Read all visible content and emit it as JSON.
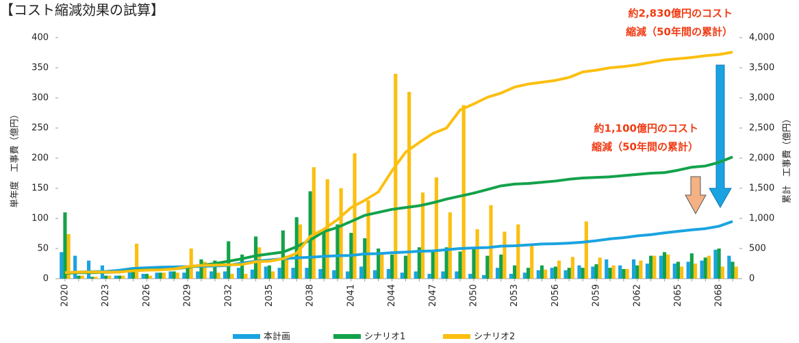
{
  "chart_data": {
    "type": "bar-line",
    "title": "【コスト縮減効果の試算】",
    "y_label": "単年度　工事費（億円）",
    "y2_label": "累計　工事費（億円）",
    "categories": [
      "2020",
      null,
      null,
      "2023",
      null,
      null,
      "2026",
      null,
      null,
      "2029",
      null,
      null,
      "2032",
      null,
      null,
      "2035",
      null,
      null,
      "2038",
      null,
      null,
      "2041",
      null,
      null,
      "2044",
      null,
      null,
      "2047",
      null,
      null,
      "2050",
      null,
      null,
      "2053",
      null,
      null,
      "2056",
      null,
      null,
      "2059",
      null,
      null,
      "2062",
      null,
      null,
      "2065",
      null,
      null,
      "2068",
      null
    ],
    "ylim": [
      0,
      400
    ],
    "yticks": [
      0,
      50,
      100,
      150,
      200,
      250,
      300,
      350,
      400
    ],
    "y2lim": [
      0,
      4000
    ],
    "y2ticks": [
      0,
      500,
      {
        "value": 1000,
        "label": "1,000"
      },
      {
        "value": 1500,
        "label": "1,500"
      },
      {
        "value": 2000,
        "label": "2,000"
      },
      {
        "value": 2500,
        "label": "2,500"
      },
      {
        "value": 3000,
        "label": "3,000"
      },
      {
        "value": 3500,
        "label": "3,500"
      },
      {
        "value": 4000,
        "label": "4,000"
      }
    ],
    "series": [
      {
        "name": "本計画",
        "color": "#1aa3e0",
        "values": [
          44,
          38,
          30,
          22,
          5,
          12,
          8,
          10,
          12,
          10,
          12,
          12,
          12,
          18,
          15,
          20,
          18,
          18,
          18,
          16,
          14,
          12,
          20,
          14,
          16,
          10,
          12,
          8,
          12,
          12,
          8,
          6,
          18,
          8,
          10,
          14,
          18,
          14,
          22,
          20,
          32,
          22,
          32,
          25,
          38,
          25,
          28,
          30,
          48,
          38
        ],
        "cumulative": [
          100,
          110,
          115,
          120,
          140,
          170,
          180,
          190,
          195,
          200,
          205,
          210,
          220,
          260,
          290,
          310,
          330,
          345,
          355,
          370,
          380,
          385,
          410,
          415,
          430,
          440,
          455,
          460,
          480,
          500,
          510,
          515,
          540,
          545,
          560,
          575,
          580,
          590,
          605,
          630,
          660,
          680,
          710,
          730,
          760,
          785,
          810,
          830,
          870,
          950
        ]
      },
      {
        "name": "シナリオ1",
        "color": "#13a24b",
        "values": [
          110,
          5,
          3,
          5,
          5,
          12,
          8,
          10,
          12,
          20,
          32,
          30,
          62,
          40,
          70,
          22,
          80,
          102,
          145,
          78,
          90,
          76,
          67,
          50,
          40,
          38,
          52,
          48,
          52,
          45,
          50,
          38,
          40,
          22,
          18,
          22,
          20,
          18,
          18,
          24,
          18,
          16,
          22,
          38,
          44,
          28,
          42,
          35,
          50,
          28
        ],
        "cumulative": [
          90,
          100,
          100,
          105,
          110,
          140,
          145,
          150,
          160,
          190,
          220,
          250,
          290,
          330,
          380,
          410,
          440,
          530,
          640,
          780,
          850,
          950,
          1050,
          1100,
          1150,
          1180,
          1210,
          1260,
          1320,
          1370,
          1420,
          1480,
          1540,
          1570,
          1580,
          1600,
          1620,
          1650,
          1670,
          1680,
          1690,
          1710,
          1730,
          1750,
          1760,
          1800,
          1850,
          1870,
          1930,
          2020
        ]
      },
      {
        "name": "シナリオ2",
        "color": "#fbbf10",
        "values": [
          74,
          5,
          3,
          5,
          5,
          58,
          5,
          10,
          10,
          50,
          28,
          10,
          8,
          8,
          52,
          12,
          38,
          90,
          185,
          165,
          150,
          208,
          130,
          40,
          340,
          310,
          143,
          168,
          110,
          288,
          82,
          122,
          78,
          90,
          58,
          15,
          30,
          36,
          95,
          35,
          22,
          16,
          30,
          38,
          40,
          20,
          25,
          38,
          20,
          20
        ],
        "cumulative": [
          100,
          110,
          110,
          110,
          110,
          130,
          140,
          145,
          160,
          200,
          220,
          225,
          230,
          235,
          280,
          290,
          330,
          420,
          700,
          820,
          980,
          1180,
          1300,
          1440,
          1790,
          2100,
          2260,
          2410,
          2500,
          2800,
          2900,
          3010,
          3080,
          3180,
          3230,
          3260,
          3290,
          3340,
          3430,
          3460,
          3500,
          3520,
          3550,
          3590,
          3630,
          3650,
          3670,
          3700,
          3720,
          3760
        ]
      }
    ],
    "annotations": [
      {
        "lines": [
          "約2,830億円のコスト",
          "縮減（50年間の累計）"
        ]
      },
      {
        "lines": [
          "約1,100億円のコスト",
          "縮減（50年間の累計）"
        ]
      }
    ]
  }
}
